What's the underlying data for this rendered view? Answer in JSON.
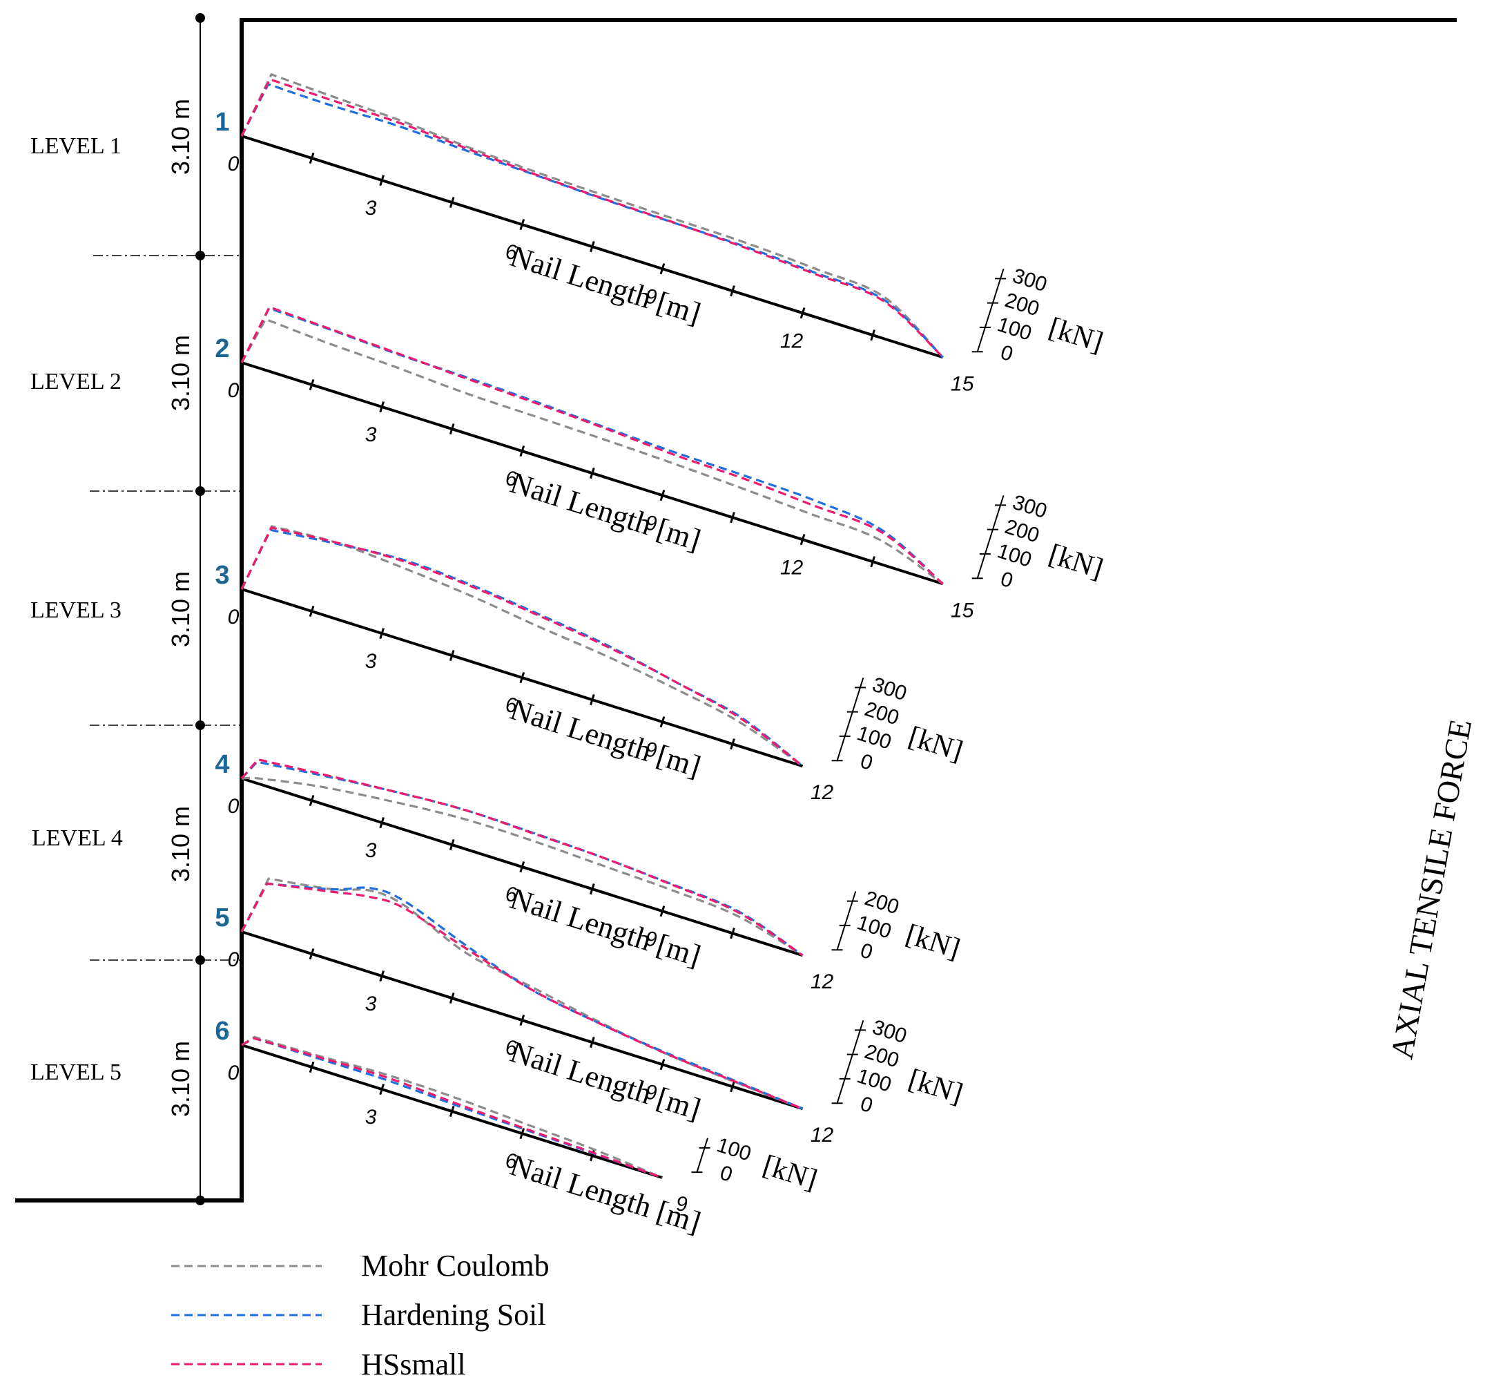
{
  "chart_data": {
    "type": "line",
    "title": "",
    "right_label": "AXIAL TENSILE FORCE",
    "xlabel": "Nail Length [m]",
    "force_unit_label": "[kN]",
    "spacing_label": "3.10 m",
    "levels": [
      "LEVEL 1",
      "LEVEL 2",
      "LEVEL 3",
      "LEVEL 4",
      "LEVEL 5"
    ],
    "legend": [
      {
        "name": "Mohr Coulomb",
        "color": "#8c8c8c"
      },
      {
        "name": "Hardening Soil",
        "color": "#1f6fe0"
      },
      {
        "name": "HSsmall",
        "color": "#ec1b6e"
      }
    ],
    "nails": [
      {
        "id": "1",
        "length": 15,
        "x_ticks": [
          "0",
          "3",
          "6",
          "9",
          "12",
          "15"
        ],
        "force_ticks": [
          "0",
          "100",
          "200",
          "300"
        ],
        "x": [
          0,
          0.2,
          1.5,
          3,
          4.5,
          6,
          7.5,
          9,
          10.5,
          12,
          13.5,
          15
        ],
        "series": [
          {
            "name": "Mohr Coulomb",
            "values": [
              0,
              265,
              255,
              245,
              225,
              212,
              205,
              200,
              195,
              180,
              155,
              0
            ]
          },
          {
            "name": "Hardening Soil",
            "values": [
              0,
              225,
              220,
              222,
              210,
              200,
              190,
              185,
              180,
              165,
              145,
              0
            ]
          },
          {
            "name": "HSsmall",
            "values": [
              0,
              245,
              240,
              235,
              218,
              202,
              192,
              186,
              176,
              160,
              140,
              0
            ]
          }
        ]
      },
      {
        "id": "2",
        "length": 15,
        "x_ticks": [
          "0",
          "3",
          "6",
          "9",
          "12",
          "15"
        ],
        "force_ticks": [
          "0",
          "100",
          "200",
          "300"
        ],
        "x": [
          0,
          0.2,
          1.5,
          3,
          4.5,
          6,
          7.5,
          9,
          10.5,
          12,
          13.5,
          15
        ],
        "series": [
          {
            "name": "Mohr Coulomb",
            "values": [
              0,
              190,
              175,
              165,
              150,
              145,
              140,
              132,
              120,
              105,
              90,
              0
            ]
          },
          {
            "name": "Hardening Soil",
            "values": [
              0,
              235,
              228,
              215,
              210,
              200,
              186,
              175,
              170,
              160,
              128,
              0
            ]
          },
          {
            "name": "HSsmall",
            "values": [
              0,
              240,
              230,
              218,
              205,
              195,
              182,
              165,
              158,
              140,
              120,
              0
            ]
          }
        ]
      },
      {
        "id": "3",
        "length": 12,
        "x_ticks": [
          "0",
          "3",
          "6",
          "9",
          "12"
        ],
        "force_ticks": [
          "0",
          "100",
          "200",
          "300"
        ],
        "x": [
          0,
          0.2,
          1.5,
          3,
          4.5,
          6,
          7.5,
          9,
          10.5,
          12
        ],
        "series": [
          {
            "name": "Mohr Coulomb",
            "values": [
              0,
              270,
              285,
              270,
              245,
              210,
              180,
              140,
              90,
              0
            ]
          },
          {
            "name": "Hardening Soil",
            "values": [
              0,
              255,
              280,
              300,
              285,
              255,
              220,
              165,
              110,
              0
            ]
          },
          {
            "name": "HSsmall",
            "values": [
              0,
              265,
              285,
              295,
              280,
              250,
              215,
              165,
              105,
              0
            ]
          }
        ]
      },
      {
        "id": "4",
        "length": 12,
        "x_ticks": [
          "0",
          "3",
          "6",
          "9",
          "12"
        ],
        "force_ticks": [
          "0",
          "100",
          "200"
        ],
        "x": [
          0,
          0.2,
          1.5,
          3,
          4.5,
          6,
          7.5,
          9,
          10.5,
          12
        ],
        "series": [
          {
            "name": "Mohr Coulomb",
            "values": [
              0,
              15,
              60,
              90,
              110,
              110,
              100,
              90,
              70,
              0
            ]
          },
          {
            "name": "Hardening Soil",
            "values": [
              0,
              80,
              105,
              130,
              145,
              140,
              130,
              112,
              88,
              0
            ]
          },
          {
            "name": "HSsmall",
            "values": [
              0,
              90,
              110,
              130,
              145,
              138,
              130,
              110,
              84,
              0
            ]
          }
        ]
      },
      {
        "id": "5",
        "length": 12,
        "x_ticks": [
          "0",
          "3",
          "6",
          "9",
          "12"
        ],
        "force_ticks": [
          "0",
          "100",
          "200",
          "300"
        ],
        "x": [
          0,
          0.2,
          1.5,
          2.25,
          3,
          4.5,
          6,
          7.5,
          9,
          10.5,
          12
        ],
        "series": [
          {
            "name": "Mohr Coulomb",
            "values": [
              0,
              230,
              265,
              305,
              290,
              185,
              135,
              85,
              45,
              20,
              0
            ]
          },
          {
            "name": "Hardening Soil",
            "values": [
              0,
              210,
              265,
              315,
              305,
              210,
              125,
              80,
              48,
              25,
              0
            ]
          },
          {
            "name": "HSsmall",
            "values": [
              0,
              210,
              255,
              280,
              280,
              200,
              125,
              80,
              45,
              22,
              0
            ]
          }
        ]
      },
      {
        "id": "6",
        "length": 9,
        "x_ticks": [
          "0",
          "3",
          "6",
          "9"
        ],
        "force_ticks": [
          "0",
          "100"
        ],
        "x": [
          0,
          0.2,
          1.5,
          3,
          4.5,
          6,
          7.5,
          9
        ],
        "series": [
          {
            "name": "Mohr Coulomb",
            "values": [
              0,
              45,
              50,
              60,
              55,
              40,
              25,
              0
            ]
          },
          {
            "name": "Hardening Soil",
            "values": [
              0,
              40,
              40,
              40,
              28,
              18,
              10,
              0
            ]
          },
          {
            "name": "HSsmall",
            "values": [
              0,
              40,
              45,
              50,
              35,
              22,
              12,
              0
            ]
          }
        ]
      }
    ]
  }
}
